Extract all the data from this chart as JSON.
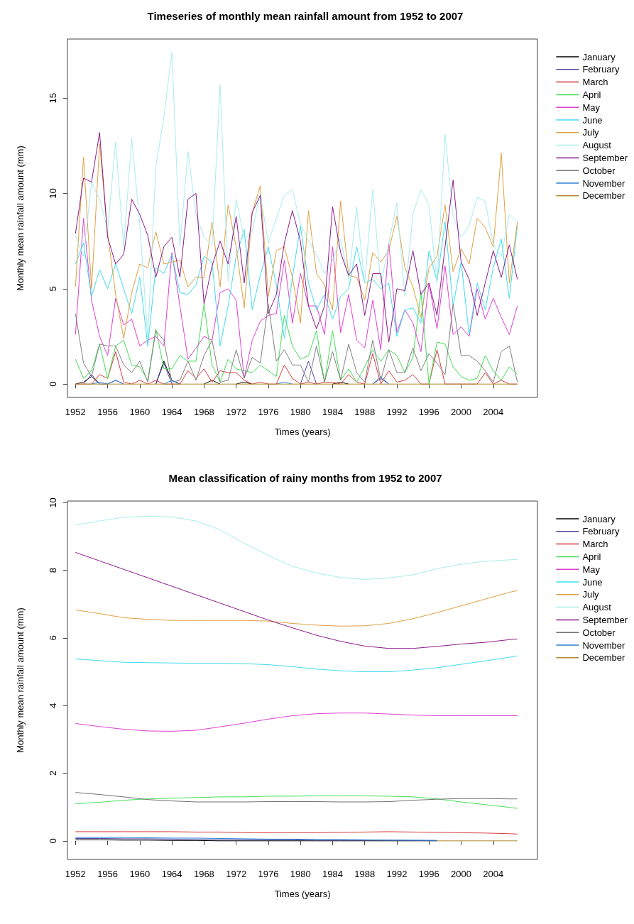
{
  "chart_data": [
    {
      "type": "line",
      "title": "Timeseries of monthly mean rainfall amount from 1952 to 2007",
      "xlabel": "Times (years)",
      "ylabel": "Monthly mean rainfall amount (mm)",
      "legend": "right",
      "marker": "none",
      "x": [
        1952,
        1953,
        1954,
        1955,
        1956,
        1957,
        1958,
        1959,
        1960,
        1961,
        1962,
        1963,
        1964,
        1965,
        1966,
        1967,
        1968,
        1969,
        1970,
        1971,
        1972,
        1973,
        1974,
        1975,
        1976,
        1977,
        1978,
        1979,
        1980,
        1981,
        1982,
        1983,
        1984,
        1985,
        1986,
        1987,
        1988,
        1989,
        1990,
        1991,
        1992,
        1993,
        1994,
        1995,
        1996,
        1997,
        1998,
        1999,
        2000,
        2001,
        2002,
        2003,
        2004,
        2005,
        2006,
        2007
      ],
      "xlim": [
        1951,
        2009.5
      ],
      "xticks": [
        1952,
        1956,
        1960,
        1964,
        1968,
        1972,
        1976,
        1980,
        1984,
        1988,
        1992,
        1996,
        2000,
        2004
      ],
      "ylim": [
        -0.7,
        18.1
      ],
      "yticks": [
        0,
        5,
        10,
        15
      ],
      "series": [
        {
          "name": "January",
          "color": "#000000",
          "values": [
            0,
            0.1,
            0.4,
            0,
            null,
            null,
            null,
            null,
            null,
            null,
            0,
            1.2,
            0.2,
            0,
            null,
            null,
            0,
            0.2,
            0,
            null,
            0,
            0.1,
            0,
            null,
            null,
            null,
            null,
            null,
            null,
            null,
            null,
            null,
            0,
            0.1,
            0,
            null,
            null,
            null,
            null,
            null,
            null,
            null,
            null,
            null,
            null,
            null,
            null,
            null,
            null,
            null,
            null,
            null,
            null,
            null,
            null,
            null
          ]
        },
        {
          "name": "February",
          "color": "#4b3fa0",
          "values": [
            null,
            0,
            0.5,
            0,
            0,
            0.2,
            0,
            null,
            null,
            null,
            0,
            1.1,
            0,
            null,
            null,
            null,
            null,
            null,
            null,
            null,
            null,
            null,
            null,
            null,
            null,
            null,
            null,
            null,
            0,
            1.2,
            0,
            null,
            null,
            null,
            null,
            null,
            null,
            0,
            0.3,
            0,
            null,
            null,
            null,
            null,
            null,
            null,
            null,
            null,
            null,
            null,
            null,
            null,
            null,
            null,
            null,
            null
          ]
        },
        {
          "name": "March",
          "color": "#d43c3c",
          "values": [
            0,
            0,
            0,
            0.5,
            0.3,
            1.7,
            0.1,
            0,
            0.2,
            0,
            0.2,
            0,
            0,
            0,
            0.7,
            0.3,
            0.8,
            0.1,
            0.7,
            0.6,
            0.6,
            0.2,
            0,
            0.1,
            0,
            0,
            1.0,
            0.3,
            0,
            0.1,
            0,
            0.1,
            0.1,
            0,
            0.5,
            0.1,
            0,
            1.6,
            0,
            0.7,
            0.1,
            0.2,
            0.5,
            0,
            0,
            1.8,
            0,
            0,
            0,
            0,
            0,
            0.6,
            0,
            0.2,
            0,
            0
          ]
        },
        {
          "name": "April",
          "color": "#44dd55",
          "values": [
            1.3,
            0.3,
            0.7,
            2.1,
            0.3,
            2.0,
            2.3,
            1.0,
            0.9,
            0.2,
            2.9,
            0.8,
            0.8,
            1.5,
            1.2,
            1.2,
            4.2,
            1.0,
            0.1,
            1.3,
            0.8,
            0.7,
            0.6,
            1.0,
            0.7,
            0.4,
            3.6,
            2.0,
            1.3,
            1.5,
            2.8,
            0.1,
            2.8,
            0.2,
            0.8,
            0.1,
            0.9,
            1.8,
            1.2,
            1.8,
            1.5,
            0.6,
            1.4,
            4.8,
            0,
            2.2,
            2.1,
            0.9,
            0.4,
            0.2,
            0.3,
            1.5,
            0.7,
            0.2,
            0.9,
            0.5
          ]
        },
        {
          "name": "May",
          "color": "#e040d0",
          "values": [
            2.6,
            8.7,
            4.4,
            2.5,
            1.5,
            4.5,
            3.1,
            3.4,
            2.0,
            2.3,
            2.5,
            2.0,
            6.9,
            4.1,
            1.3,
            1.9,
            2.5,
            2.3,
            4.8,
            5.0,
            4.4,
            0.3,
            2.3,
            3.3,
            3.6,
            3.7,
            6.5,
            3.2,
            5.8,
            4.1,
            4.1,
            2.6,
            7.2,
            2.7,
            4.7,
            2.3,
            1.9,
            4.4,
            1.8,
            7.4,
            2.7,
            3.9,
            3.2,
            1.7,
            5.3,
            2.9,
            6.2,
            2.6,
            3.0,
            2.5,
            5.0,
            3.4,
            4.5,
            3.5,
            2.6,
            4.1
          ]
        },
        {
          "name": "June",
          "color": "#40dcec",
          "values": [
            6.3,
            7.4,
            4.6,
            6.0,
            5.0,
            6.3,
            5.0,
            3.7,
            5.6,
            2.0,
            6.1,
            5.8,
            6.8,
            4.8,
            4.7,
            5.2,
            6.7,
            6.4,
            2.0,
            4.1,
            6.7,
            8.1,
            3.9,
            5.7,
            7.2,
            5.2,
            2.4,
            5.6,
            8.3,
            5.3,
            3.9,
            4.7,
            3.4,
            4.6,
            5.0,
            7.2,
            5.3,
            5.5,
            5.0,
            5.3,
            2.5,
            3.9,
            4.0,
            3.2,
            7.0,
            5.4,
            8.5,
            4.1,
            6.4,
            2.6,
            5.3,
            3.9,
            6.1,
            7.6,
            4.5,
            8.3
          ]
        },
        {
          "name": "July",
          "color": "#e0a040",
          "values": [
            5.1,
            11.9,
            5.0,
            12.6,
            7.9,
            4.7,
            2.4,
            4.8,
            6.3,
            6.1,
            8.0,
            6.3,
            6.4,
            6.5,
            5.1,
            5.6,
            5.6,
            8.5,
            5.1,
            9.4,
            7.2,
            4.0,
            9.0,
            10.4,
            4.6,
            7.0,
            7.2,
            5.6,
            3.2,
            9.1,
            5.8,
            5.2,
            3.9,
            9.6,
            5.7,
            5.6,
            4.4,
            6.9,
            6.4,
            7.0,
            8.8,
            6.1,
            5.1,
            3.5,
            6.1,
            6.7,
            9.4,
            5.9,
            7.1,
            6.3,
            8.7,
            8.2,
            7.2,
            12.1,
            5.3,
            8.5
          ]
        },
        {
          "name": "August",
          "color": "#a8ecec",
          "values": [
            7.8,
            6.7,
            10.6,
            9.7,
            8.1,
            12.7,
            7.2,
            12.9,
            8.4,
            2.4,
            11.4,
            14.0,
            17.4,
            7.2,
            12.2,
            8.9,
            7.7,
            7.3,
            15.7,
            5.4,
            9.7,
            7.6,
            8.0,
            10.0,
            7.4,
            8.7,
            9.9,
            10.2,
            8.4,
            7.5,
            6.8,
            5.8,
            6.5,
            7.6,
            5.5,
            9.3,
            5.3,
            10.2,
            5.2,
            7.4,
            9.5,
            4.6,
            8.9,
            10.2,
            9.4,
            5.3,
            13.1,
            8.8,
            7.7,
            8.3,
            9.8,
            9.6,
            7.3,
            6.7,
            8.9,
            8.5
          ]
        },
        {
          "name": "September",
          "color": "#8b1a8b",
          "values": [
            7.9,
            10.8,
            10.6,
            13.2,
            7.7,
            6.3,
            6.8,
            9.7,
            8.9,
            7.8,
            5.6,
            7.2,
            7.7,
            5.6,
            9.7,
            10.0,
            4.2,
            6.2,
            7.5,
            6.3,
            8.8,
            5.3,
            9.0,
            9.9,
            3.7,
            4.7,
            7.4,
            9.1,
            7.5,
            4.1,
            2.9,
            4.1,
            9.3,
            6.9,
            5.7,
            6.3,
            3.6,
            5.8,
            5.8,
            2.2,
            5.0,
            4.9,
            7.0,
            4.7,
            5.3,
            3.6,
            7.2,
            10.7,
            6.4,
            5.5,
            3.6,
            5.3,
            7.0,
            5.6,
            7.3,
            5.5
          ]
        },
        {
          "name": "October",
          "color": "#808080",
          "values": [
            3.7,
            1.1,
            0.4,
            2.1,
            2.0,
            2.0,
            1.0,
            0.6,
            1.2,
            0.1,
            2.8,
            2.3,
            0.1,
            0.2,
            1.2,
            0.2,
            1.5,
            2.3,
            0.1,
            0.2,
            1.8,
            0.3,
            1.4,
            1.1,
            4.2,
            1.2,
            1.8,
            1.0,
            1.0,
            0.1,
            2.0,
            0.1,
            1.7,
            0.2,
            2.1,
            0.6,
            0.1,
            2.3,
            0.2,
            1.8,
            0.6,
            0.6,
            1.9,
            0.7,
            1.6,
            1.1,
            0.5,
            4.2,
            1.5,
            1.5,
            1.2,
            0.7,
            0.1,
            1.7,
            2.0,
            0.1
          ]
        },
        {
          "name": "November",
          "color": "#2a7fd4",
          "values": [
            null,
            null,
            0,
            0.1,
            0,
            0.2,
            0,
            null,
            null,
            null,
            null,
            0,
            0.2,
            0,
            null,
            null,
            null,
            null,
            null,
            null,
            null,
            null,
            null,
            null,
            null,
            0,
            0.1,
            0,
            null,
            null,
            null,
            null,
            null,
            null,
            null,
            null,
            null,
            0,
            0.4,
            0,
            null,
            null,
            null,
            null,
            null,
            null,
            null,
            null,
            null,
            null,
            null,
            null,
            null,
            null,
            null,
            null
          ]
        },
        {
          "name": "December",
          "color": "#b08a30",
          "values": [
            0,
            0,
            0,
            0,
            0,
            0,
            0,
            0,
            0,
            0,
            0,
            0,
            0,
            0,
            0,
            0,
            0,
            0,
            0,
            0,
            0,
            0,
            0,
            0,
            0,
            0,
            0,
            0,
            0,
            0,
            0,
            0,
            0,
            0,
            0,
            0,
            0,
            0,
            0,
            0,
            0,
            0,
            0,
            0,
            0,
            0,
            0,
            0,
            0,
            0,
            0,
            0,
            0,
            0,
            0,
            0
          ]
        }
      ]
    },
    {
      "type": "line",
      "title": "Mean classification of rainy months from 1952 to 2007",
      "xlabel": "Times (years)",
      "ylabel": "Monthly mean rainfall amount (mm)",
      "legend": "right",
      "marker": "none",
      "x": [
        1952,
        1955,
        1958,
        1961,
        1964,
        1967,
        1970,
        1973,
        1976,
        1979,
        1982,
        1985,
        1988,
        1991,
        1994,
        1997,
        2000,
        2003,
        2006,
        2007
      ],
      "xlim": [
        1951,
        2009.5
      ],
      "xticks": [
        1952,
        1956,
        1960,
        1964,
        1968,
        1972,
        1976,
        1980,
        1984,
        1988,
        1992,
        1996,
        2000,
        2004
      ],
      "ylim": [
        -0.55,
        10.05
      ],
      "yticks": [
        0,
        2,
        4,
        6,
        8,
        10
      ],
      "series": [
        {
          "name": "January",
          "color": "#000000",
          "values": [
            0.03,
            0.03,
            0.02,
            0.02,
            0.01,
            0.01,
            0,
            0,
            0,
            0,
            0,
            0,
            0,
            0,
            0,
            0,
            null,
            null,
            null,
            null
          ]
        },
        {
          "name": "February",
          "color": "#4b3fa0",
          "values": [
            0.07,
            0.07,
            0.06,
            0.06,
            0.05,
            0.04,
            0.03,
            0.03,
            0.03,
            0.03,
            0.02,
            0.02,
            0.02,
            0.02,
            0.01,
            0.01,
            null,
            null,
            null,
            null
          ]
        },
        {
          "name": "March",
          "color": "#d43c3c",
          "values": [
            0.27,
            0.27,
            0.27,
            0.27,
            0.27,
            0.26,
            0.26,
            0.24,
            0.24,
            0.24,
            0.24,
            0.25,
            0.26,
            0.27,
            0.26,
            0.25,
            0.24,
            0.23,
            0.21,
            0.2
          ]
        },
        {
          "name": "April",
          "color": "#44dd55",
          "values": [
            1.1,
            1.14,
            1.2,
            1.24,
            1.26,
            1.28,
            1.3,
            1.3,
            1.32,
            1.32,
            1.33,
            1.33,
            1.33,
            1.32,
            1.3,
            1.24,
            1.15,
            1.07,
            0.99,
            0.96
          ]
        },
        {
          "name": "May",
          "color": "#e040d0",
          "values": [
            3.47,
            3.38,
            3.3,
            3.25,
            3.24,
            3.27,
            3.37,
            3.48,
            3.6,
            3.7,
            3.76,
            3.78,
            3.78,
            3.75,
            3.72,
            3.7,
            3.7,
            3.7,
            3.7,
            3.7
          ]
        },
        {
          "name": "June",
          "color": "#40dcec",
          "values": [
            5.38,
            5.33,
            5.28,
            5.27,
            5.26,
            5.25,
            5.25,
            5.24,
            5.21,
            5.15,
            5.08,
            5.03,
            5.0,
            5.0,
            5.05,
            5.12,
            5.22,
            5.32,
            5.43,
            5.47
          ]
        },
        {
          "name": "July",
          "color": "#e0a040",
          "values": [
            6.83,
            6.72,
            6.6,
            6.55,
            6.52,
            6.52,
            6.52,
            6.52,
            6.5,
            6.43,
            6.38,
            6.35,
            6.36,
            6.43,
            6.57,
            6.75,
            6.95,
            7.15,
            7.35,
            7.4
          ]
        },
        {
          "name": "August",
          "color": "#a8ecec",
          "values": [
            9.34,
            9.46,
            9.57,
            9.6,
            9.58,
            9.46,
            9.2,
            8.8,
            8.44,
            8.12,
            7.92,
            7.79,
            7.73,
            7.77,
            7.87,
            8.05,
            8.18,
            8.27,
            8.31,
            8.32
          ]
        },
        {
          "name": "September",
          "color": "#8b1a8b",
          "values": [
            8.53,
            8.28,
            8.03,
            7.78,
            7.53,
            7.28,
            7.03,
            6.78,
            6.53,
            6.3,
            6.08,
            5.9,
            5.76,
            5.69,
            5.69,
            5.75,
            5.82,
            5.87,
            5.95,
            5.97
          ]
        },
        {
          "name": "October",
          "color": "#707070",
          "values": [
            1.43,
            1.37,
            1.3,
            1.22,
            1.18,
            1.15,
            1.15,
            1.15,
            1.16,
            1.16,
            1.16,
            1.15,
            1.15,
            1.16,
            1.2,
            1.23,
            1.25,
            1.25,
            1.24,
            1.24
          ]
        },
        {
          "name": "November",
          "color": "#2a7fd4",
          "values": [
            0.1,
            0.1,
            0.1,
            0.09,
            0.08,
            0.08,
            0.07,
            0.06,
            0.05,
            0.05,
            0.04,
            0.04,
            0.03,
            0.02,
            0.02,
            0.01,
            null,
            null,
            null,
            null
          ]
        },
        {
          "name": "December",
          "color": "#b08a30",
          "values": [
            null,
            null,
            null,
            null,
            null,
            null,
            null,
            null,
            null,
            null,
            null,
            null,
            null,
            null,
            null,
            0,
            0,
            0,
            0,
            0
          ]
        }
      ]
    }
  ]
}
